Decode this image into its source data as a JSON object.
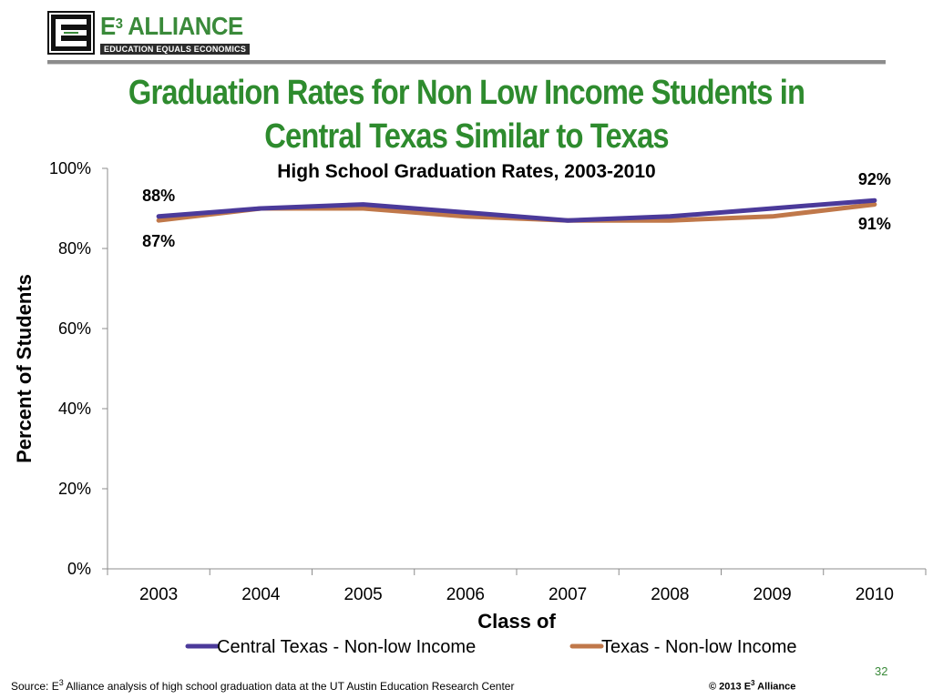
{
  "logo": {
    "title_main": "E",
    "title_sup": "3",
    "title_rest": " ALLIANCE",
    "subtitle": "EDUCATION EQUALS ECONOMICS"
  },
  "slide": {
    "title_line1": "Graduation Rates for Non Low Income Students in",
    "title_line2": "Central Texas Similar to Texas"
  },
  "chart_data": {
    "type": "line",
    "title": "High School Graduation Rates, 2003-2010",
    "xlabel": "Class of",
    "ylabel": "Percent of Students",
    "categories": [
      "2003",
      "2004",
      "2005",
      "2006",
      "2007",
      "2008",
      "2009",
      "2010"
    ],
    "ylim": [
      0,
      100
    ],
    "yticks": [
      0,
      20,
      40,
      60,
      80,
      100
    ],
    "ytick_labels": [
      "0%",
      "20%",
      "40%",
      "60%",
      "80%",
      "100%"
    ],
    "grid": false,
    "legend_position": "bottom",
    "series": [
      {
        "name": "Central Texas - Non-low Income",
        "color": "#4b3a9a",
        "values": [
          88,
          90,
          91,
          89,
          87,
          88,
          90,
          92
        ],
        "start_label": "88%",
        "end_label": "92%"
      },
      {
        "name": "Texas - Non-low Income",
        "color": "#c0784a",
        "values": [
          87,
          90,
          90,
          88,
          87,
          87,
          88,
          91
        ],
        "start_label": "87%",
        "end_label": "91%"
      }
    ]
  },
  "footer": {
    "source_prefix": "Source: E",
    "source_sup": "3",
    "source_rest": " Alliance analysis of high school graduation data at the UT Austin Education Research Center",
    "copyright_prefix": "© 2013 E",
    "copyright_sup": "3",
    "copyright_rest": " Alliance",
    "page_number": "32"
  },
  "colors": {
    "title_green": "#2e8b2e",
    "logo_green": "#3a8a3a"
  }
}
